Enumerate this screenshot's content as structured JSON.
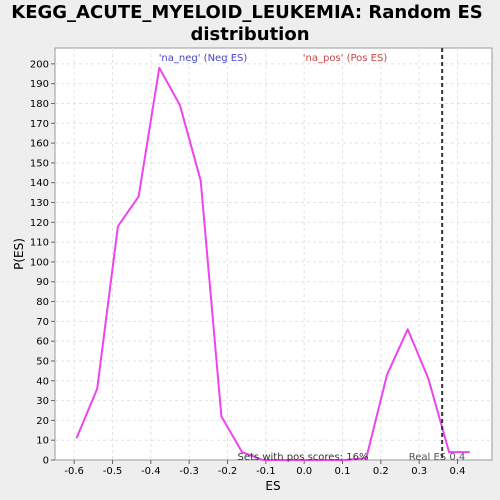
{
  "chart_data": {
    "type": "line",
    "title_line1": "KEGG_ACUTE_MYELOID_LEUKEMIA: Random ES",
    "title_line2": "distribution",
    "xlabel": "ES",
    "ylabel": "P(ES)",
    "xlim": [
      -0.65,
      0.49
    ],
    "ylim": [
      0,
      208
    ],
    "xticks": [
      -0.6,
      -0.5,
      -0.4,
      -0.3,
      -0.2,
      -0.1,
      0.0,
      0.1,
      0.2,
      0.3,
      0.4
    ],
    "xtick_labels": [
      "-0.6",
      "-0.5",
      "-0.4",
      "-0.3",
      "-0.2",
      "-0.1",
      "0.0",
      "0.1",
      "0.2",
      "0.3",
      "0.4"
    ],
    "yticks": [
      0,
      10,
      20,
      30,
      40,
      50,
      60,
      70,
      80,
      90,
      100,
      110,
      120,
      130,
      140,
      150,
      160,
      170,
      180,
      190,
      200
    ],
    "grid": true,
    "series": [
      {
        "color": "#ee44ee",
        "x": [
          -0.594,
          -0.54,
          -0.486,
          -0.432,
          -0.378,
          -0.324,
          -0.27,
          -0.216,
          -0.162,
          -0.108,
          -0.054,
          0.0,
          0.054,
          0.108,
          0.162,
          0.216,
          0.27,
          0.324,
          0.378,
          0.432
        ],
        "y": [
          11,
          36,
          118,
          133,
          198,
          179,
          141,
          22,
          4,
          0,
          0,
          0,
          0,
          0,
          1,
          43,
          66,
          41,
          4,
          4
        ]
      }
    ],
    "real_es": {
      "x": 0.36,
      "label": "Real ES 0.4",
      "color": "#333333"
    },
    "legend": [
      {
        "label": "'na_neg' (Neg ES)",
        "color": "#4444cc"
      },
      {
        "label": "'na_pos' (Pos ES)",
        "color": "#cc4444"
      }
    ],
    "annotation": "Sets with pos scores: 16%"
  }
}
